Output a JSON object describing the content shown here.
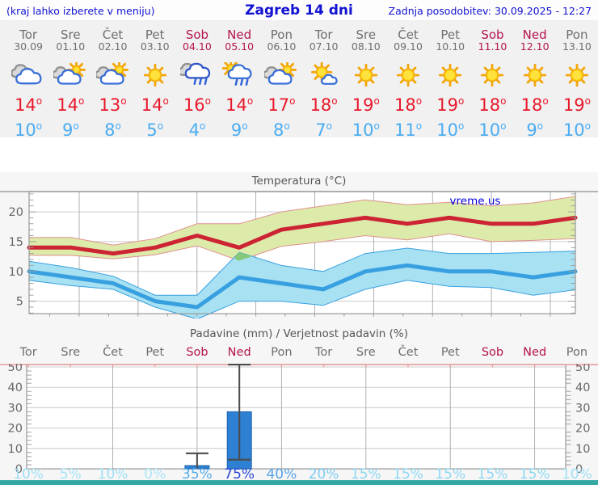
{
  "header": {
    "hint": "(kraj lahko izberete v meniju)",
    "title": "Zagreb 14 dni",
    "updated": "Zadnja posodobitev: 30.09.2025 - 12:27"
  },
  "degree": "o",
  "colors": {
    "header_text": "#1212d2",
    "weekday": "#6e6e6e",
    "weekend": "#b5134f",
    "high": "#e8192c",
    "low": "#4aacf2",
    "chart_title": "#555555",
    "axis_label": "#666666",
    "temp_high_line": "#cc2433",
    "temp_high_band": "#dcebaa",
    "temp_band_edge": "#e09090",
    "temp_low_line": "#38a0e0",
    "temp_low_band": "#a8e1f2",
    "temp_overlap": "#85c878",
    "bar_fill": "#2e80d2",
    "bar_edge": "#1f62ac",
    "whisker": "#4a4a4a",
    "grid_h": "#cccccc",
    "grid_v": "#a8a8a8",
    "plot_border": "#999999",
    "pink_line": "#e89898",
    "watermark": "#0000dd",
    "footer": "#35a8a3"
  },
  "days": [
    {
      "name": "Tor",
      "date": "30.09",
      "weekend": false,
      "icon": "cloudy",
      "high": 14,
      "low": 10,
      "prob_pct": 10,
      "prob_color": "#9fdff6"
    },
    {
      "name": "Sre",
      "date": "01.10",
      "weekend": false,
      "icon": "partly",
      "high": 14,
      "low": 9,
      "prob_pct": 5,
      "prob_color": "#a8e3f8"
    },
    {
      "name": "Čet",
      "date": "02.10",
      "weekend": false,
      "icon": "partly",
      "high": 13,
      "low": 8,
      "prob_pct": 10,
      "prob_color": "#9fdff6"
    },
    {
      "name": "Pet",
      "date": "03.10",
      "weekend": false,
      "icon": "sunny",
      "high": 14,
      "low": 5,
      "prob_pct": 0,
      "prob_color": "#ade6f9"
    },
    {
      "name": "Sob",
      "date": "04.10",
      "weekend": true,
      "icon": "rain",
      "high": 16,
      "low": 4,
      "prob_pct": 35,
      "prob_color": "#57aeec"
    },
    {
      "name": "Ned",
      "date": "05.10",
      "weekend": true,
      "icon": "sun-rain",
      "high": 14,
      "low": 9,
      "prob_pct": 75,
      "prob_color": "#2b49d6"
    },
    {
      "name": "Pon",
      "date": "06.10",
      "weekend": false,
      "icon": "partly",
      "high": 17,
      "low": 8,
      "prob_pct": 40,
      "prob_color": "#58a5e8"
    },
    {
      "name": "Tor",
      "date": "07.10",
      "weekend": false,
      "icon": "mostly-sunny",
      "high": 18,
      "low": 7,
      "prob_pct": 20,
      "prob_color": "#7fcdf1"
    },
    {
      "name": "Sre",
      "date": "08.10",
      "weekend": false,
      "icon": "sunny",
      "high": 19,
      "low": 10,
      "prob_pct": 15,
      "prob_color": "#8ed8f3"
    },
    {
      "name": "Čet",
      "date": "09.10",
      "weekend": false,
      "icon": "sunny",
      "high": 18,
      "low": 11,
      "prob_pct": 15,
      "prob_color": "#8ed8f3"
    },
    {
      "name": "Pet",
      "date": "10.10",
      "weekend": false,
      "icon": "sunny",
      "high": 19,
      "low": 10,
      "prob_pct": 15,
      "prob_color": "#8ed8f3"
    },
    {
      "name": "Sob",
      "date": "11.10",
      "weekend": true,
      "icon": "sunny",
      "high": 18,
      "low": 10,
      "prob_pct": 15,
      "prob_color": "#8ed8f3"
    },
    {
      "name": "Ned",
      "date": "12.10",
      "weekend": true,
      "icon": "sunny",
      "high": 18,
      "low": 9,
      "prob_pct": 15,
      "prob_color": "#8ed8f3"
    },
    {
      "name": "Pon",
      "date": "13.10",
      "weekend": false,
      "icon": "sunny",
      "high": 19,
      "low": 10,
      "prob_pct": 10,
      "prob_color": "#9fdff6"
    }
  ],
  "chart_data": [
    {
      "type": "line",
      "title": "Temperatura (°C)",
      "watermark": "vreme.us",
      "categories": [
        "Tor 30.09",
        "Sre 01.10",
        "Čet 02.10",
        "Pet 03.10",
        "Sob 04.10",
        "Ned 05.10",
        "Pon 06.10",
        "Tor 07.10",
        "Sre 08.10",
        "Čet 09.10",
        "Pet 10.10",
        "Sob 11.10",
        "Ned 12.10",
        "Pon 13.10"
      ],
      "ylim": [
        2.9,
        23.4
      ],
      "yticks": [
        5,
        10,
        15,
        20
      ],
      "high": [
        14,
        14,
        13,
        14,
        16,
        14,
        17,
        18,
        19,
        18,
        19,
        18,
        18,
        19
      ],
      "high_upper": [
        15.7,
        15.7,
        14.4,
        15.5,
        18,
        18,
        20,
        21,
        22,
        21.2,
        21.6,
        21,
        21.5,
        22.6
      ],
      "high_lower": [
        12.7,
        12.7,
        12.1,
        12.8,
        14.3,
        11.8,
        14.2,
        15,
        16,
        15.3,
        16.3,
        15,
        15.2,
        15.5
      ],
      "low": [
        10,
        9,
        8,
        5,
        4,
        9,
        8,
        7,
        10,
        11,
        10,
        10,
        9,
        10
      ],
      "low_upper": [
        11.7,
        10.6,
        9.2,
        6,
        6,
        13.2,
        11,
        10,
        13,
        13.9,
        13,
        13,
        13.2,
        13.4
      ],
      "low_lower": [
        8.5,
        7.6,
        7,
        4,
        2,
        5,
        5,
        4.3,
        7,
        8.5,
        7.5,
        7.3,
        6,
        6.9
      ]
    },
    {
      "type": "bar",
      "title": "Padavine (mm) / Verjetnost padavin (%)",
      "categories": [
        "Tor",
        "Sre",
        "Čet",
        "Pet",
        "Sob",
        "Ned",
        "Pon",
        "Tor",
        "Sre",
        "Čet",
        "Pet",
        "Sob",
        "Ned",
        "Pon"
      ],
      "ylim": [
        0,
        51
      ],
      "yticks": [
        0,
        10,
        20,
        30,
        40,
        50
      ],
      "bars": [
        {
          "day_index": 4,
          "value": 1.6,
          "whisker_low": 0,
          "whisker_high": 7.6
        },
        {
          "day_index": 5,
          "value": 28,
          "whisker_low": 4.5,
          "whisker_high": 52
        }
      ],
      "probabilities_pct": [
        10,
        5,
        10,
        0,
        35,
        75,
        40,
        20,
        15,
        15,
        15,
        15,
        15,
        10
      ]
    }
  ]
}
